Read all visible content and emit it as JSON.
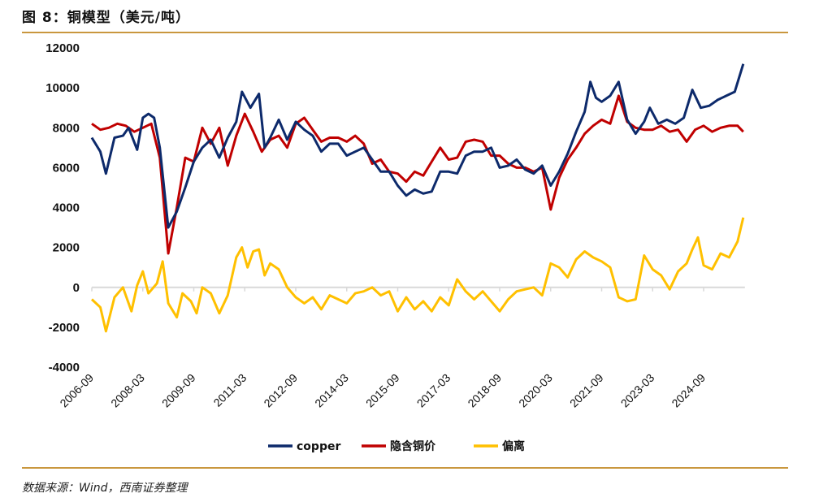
{
  "header": {
    "title": "图 8：铜模型（美元/吨）"
  },
  "footer": {
    "source": "数据来源：Wind，西南证券整理"
  },
  "colors": {
    "rule": "#c9973e",
    "copper": "#0d2a6b",
    "implied": "#c00000",
    "deviation": "#ffc000",
    "zero_line": "#d9d9d9"
  },
  "chart_data": {
    "type": "line",
    "title": "图 8：铜模型（美元/吨）",
    "xlabel": "",
    "ylabel": "",
    "ylim": [
      -4000,
      12000
    ],
    "yticks": [
      12000,
      10000,
      8000,
      6000,
      4000,
      2000,
      0,
      -2000,
      -4000
    ],
    "xlim": [
      "2006-09",
      "2025-11"
    ],
    "xticks": [
      "2006-09",
      "2008-03",
      "2009-09",
      "2011-03",
      "2012-09",
      "2014-03",
      "2015-09",
      "2017-03",
      "2018-09",
      "2020-03",
      "2021-09",
      "2023-03",
      "2024-09"
    ],
    "grid": false,
    "legend": "bottom",
    "series": [
      {
        "name": "copper",
        "color": "#0d2a6b",
        "points": [
          [
            "2006-09",
            7500
          ],
          [
            "2006-12",
            6800
          ],
          [
            "2007-02",
            5700
          ],
          [
            "2007-05",
            7500
          ],
          [
            "2007-08",
            7600
          ],
          [
            "2007-10",
            8000
          ],
          [
            "2008-01",
            6900
          ],
          [
            "2008-03",
            8500
          ],
          [
            "2008-05",
            8700
          ],
          [
            "2008-07",
            8500
          ],
          [
            "2008-09",
            7000
          ],
          [
            "2008-12",
            3000
          ],
          [
            "2009-03",
            3800
          ],
          [
            "2009-06",
            5000
          ],
          [
            "2009-09",
            6300
          ],
          [
            "2009-12",
            7000
          ],
          [
            "2010-03",
            7400
          ],
          [
            "2010-06",
            6500
          ],
          [
            "2010-09",
            7500
          ],
          [
            "2010-12",
            8300
          ],
          [
            "2011-02",
            9800
          ],
          [
            "2011-05",
            9000
          ],
          [
            "2011-08",
            9700
          ],
          [
            "2011-10",
            7000
          ],
          [
            "2011-12",
            7500
          ],
          [
            "2012-03",
            8400
          ],
          [
            "2012-06",
            7400
          ],
          [
            "2012-09",
            8300
          ],
          [
            "2012-12",
            7900
          ],
          [
            "2013-03",
            7600
          ],
          [
            "2013-06",
            6800
          ],
          [
            "2013-09",
            7200
          ],
          [
            "2013-12",
            7200
          ],
          [
            "2014-03",
            6600
          ],
          [
            "2014-06",
            6800
          ],
          [
            "2014-09",
            7000
          ],
          [
            "2014-12",
            6400
          ],
          [
            "2015-03",
            5800
          ],
          [
            "2015-06",
            5800
          ],
          [
            "2015-09",
            5100
          ],
          [
            "2015-12",
            4600
          ],
          [
            "2016-03",
            4900
          ],
          [
            "2016-06",
            4700
          ],
          [
            "2016-09",
            4800
          ],
          [
            "2016-12",
            5800
          ],
          [
            "2017-03",
            5800
          ],
          [
            "2017-06",
            5700
          ],
          [
            "2017-09",
            6600
          ],
          [
            "2017-12",
            6800
          ],
          [
            "2018-03",
            6800
          ],
          [
            "2018-06",
            7000
          ],
          [
            "2018-09",
            6000
          ],
          [
            "2018-12",
            6100
          ],
          [
            "2019-03",
            6400
          ],
          [
            "2019-06",
            5900
          ],
          [
            "2019-09",
            5700
          ],
          [
            "2019-12",
            6100
          ],
          [
            "2020-03",
            5100
          ],
          [
            "2020-06",
            5800
          ],
          [
            "2020-09",
            6700
          ],
          [
            "2020-12",
            7800
          ],
          [
            "2021-03",
            8800
          ],
          [
            "2021-05",
            10300
          ],
          [
            "2021-07",
            9500
          ],
          [
            "2021-09",
            9300
          ],
          [
            "2021-12",
            9600
          ],
          [
            "2022-03",
            10300
          ],
          [
            "2022-06",
            8400
          ],
          [
            "2022-09",
            7700
          ],
          [
            "2022-12",
            8300
          ],
          [
            "2023-02",
            9000
          ],
          [
            "2023-05",
            8200
          ],
          [
            "2023-08",
            8400
          ],
          [
            "2023-11",
            8200
          ],
          [
            "2024-02",
            8500
          ],
          [
            "2024-05",
            9900
          ],
          [
            "2024-08",
            9000
          ],
          [
            "2024-11",
            9100
          ],
          [
            "2025-02",
            9400
          ],
          [
            "2025-05",
            9600
          ],
          [
            "2025-08",
            9800
          ],
          [
            "2025-11",
            11200
          ]
        ]
      },
      {
        "name": "隐含铜价",
        "color": "#c00000",
        "points": [
          [
            "2006-09",
            8200
          ],
          [
            "2006-12",
            7900
          ],
          [
            "2007-03",
            8000
          ],
          [
            "2007-06",
            8200
          ],
          [
            "2007-09",
            8100
          ],
          [
            "2007-12",
            7800
          ],
          [
            "2008-03",
            8000
          ],
          [
            "2008-06",
            8200
          ],
          [
            "2008-09",
            6500
          ],
          [
            "2008-12",
            1700
          ],
          [
            "2009-03",
            4000
          ],
          [
            "2009-06",
            6500
          ],
          [
            "2009-09",
            6300
          ],
          [
            "2009-12",
            8000
          ],
          [
            "2010-03",
            7200
          ],
          [
            "2010-06",
            8000
          ],
          [
            "2010-09",
            6100
          ],
          [
            "2010-12",
            7600
          ],
          [
            "2011-03",
            8700
          ],
          [
            "2011-06",
            7800
          ],
          [
            "2011-09",
            6800
          ],
          [
            "2011-12",
            7400
          ],
          [
            "2012-03",
            7600
          ],
          [
            "2012-06",
            7000
          ],
          [
            "2012-09",
            8200
          ],
          [
            "2012-12",
            8500
          ],
          [
            "2013-03",
            7900
          ],
          [
            "2013-06",
            7300
          ],
          [
            "2013-09",
            7500
          ],
          [
            "2013-12",
            7500
          ],
          [
            "2014-03",
            7300
          ],
          [
            "2014-06",
            7600
          ],
          [
            "2014-09",
            7200
          ],
          [
            "2014-12",
            6200
          ],
          [
            "2015-03",
            6400
          ],
          [
            "2015-06",
            5800
          ],
          [
            "2015-09",
            5700
          ],
          [
            "2015-12",
            5300
          ],
          [
            "2016-03",
            5800
          ],
          [
            "2016-06",
            5600
          ],
          [
            "2016-09",
            6300
          ],
          [
            "2016-12",
            7000
          ],
          [
            "2017-03",
            6400
          ],
          [
            "2017-06",
            6500
          ],
          [
            "2017-09",
            7300
          ],
          [
            "2017-12",
            7400
          ],
          [
            "2018-03",
            7300
          ],
          [
            "2018-06",
            6600
          ],
          [
            "2018-09",
            6600
          ],
          [
            "2018-12",
            6200
          ],
          [
            "2019-03",
            6000
          ],
          [
            "2019-06",
            6000
          ],
          [
            "2019-09",
            5800
          ],
          [
            "2019-12",
            6000
          ],
          [
            "2020-03",
            3900
          ],
          [
            "2020-06",
            5500
          ],
          [
            "2020-09",
            6400
          ],
          [
            "2020-12",
            7000
          ],
          [
            "2021-03",
            7700
          ],
          [
            "2021-06",
            8100
          ],
          [
            "2021-09",
            8400
          ],
          [
            "2021-12",
            8200
          ],
          [
            "2022-03",
            9600
          ],
          [
            "2022-06",
            8300
          ],
          [
            "2022-09",
            8000
          ],
          [
            "2022-12",
            7900
          ],
          [
            "2023-03",
            7900
          ],
          [
            "2023-06",
            8100
          ],
          [
            "2023-09",
            7800
          ],
          [
            "2023-12",
            7900
          ],
          [
            "2024-03",
            7300
          ],
          [
            "2024-06",
            7900
          ],
          [
            "2024-09",
            8100
          ],
          [
            "2024-12",
            7800
          ],
          [
            "2025-03",
            8000
          ],
          [
            "2025-06",
            8100
          ],
          [
            "2025-09",
            8100
          ],
          [
            "2025-11",
            7800
          ]
        ]
      },
      {
        "name": "偏离",
        "color": "#ffc000",
        "points": [
          [
            "2006-09",
            -600
          ],
          [
            "2006-12",
            -1000
          ],
          [
            "2007-02",
            -2200
          ],
          [
            "2007-05",
            -500
          ],
          [
            "2007-08",
            0
          ],
          [
            "2007-11",
            -1200
          ],
          [
            "2008-01",
            100
          ],
          [
            "2008-03",
            800
          ],
          [
            "2008-05",
            -300
          ],
          [
            "2008-08",
            200
          ],
          [
            "2008-10",
            1300
          ],
          [
            "2008-12",
            -800
          ],
          [
            "2009-03",
            -1500
          ],
          [
            "2009-05",
            -300
          ],
          [
            "2009-08",
            -700
          ],
          [
            "2009-10",
            -1300
          ],
          [
            "2009-12",
            0
          ],
          [
            "2010-03",
            -300
          ],
          [
            "2010-06",
            -1300
          ],
          [
            "2010-09",
            -400
          ],
          [
            "2010-12",
            1500
          ],
          [
            "2011-02",
            2000
          ],
          [
            "2011-04",
            1000
          ],
          [
            "2011-06",
            1800
          ],
          [
            "2011-08",
            1900
          ],
          [
            "2011-10",
            600
          ],
          [
            "2011-12",
            1200
          ],
          [
            "2012-03",
            900
          ],
          [
            "2012-06",
            0
          ],
          [
            "2012-09",
            -500
          ],
          [
            "2012-12",
            -800
          ],
          [
            "2013-03",
            -500
          ],
          [
            "2013-06",
            -1100
          ],
          [
            "2013-09",
            -400
          ],
          [
            "2013-12",
            -600
          ],
          [
            "2014-03",
            -800
          ],
          [
            "2014-06",
            -300
          ],
          [
            "2014-09",
            -200
          ],
          [
            "2014-12",
            0
          ],
          [
            "2015-03",
            -400
          ],
          [
            "2015-06",
            -200
          ],
          [
            "2015-09",
            -1200
          ],
          [
            "2015-12",
            -500
          ],
          [
            "2016-03",
            -1100
          ],
          [
            "2016-06",
            -700
          ],
          [
            "2016-09",
            -1200
          ],
          [
            "2016-12",
            -500
          ],
          [
            "2017-03",
            -900
          ],
          [
            "2017-06",
            400
          ],
          [
            "2017-09",
            -200
          ],
          [
            "2017-12",
            -600
          ],
          [
            "2018-03",
            -200
          ],
          [
            "2018-06",
            -700
          ],
          [
            "2018-09",
            -1200
          ],
          [
            "2018-12",
            -600
          ],
          [
            "2019-03",
            -200
          ],
          [
            "2019-06",
            -100
          ],
          [
            "2019-09",
            0
          ],
          [
            "2019-12",
            -400
          ],
          [
            "2020-03",
            1200
          ],
          [
            "2020-06",
            1000
          ],
          [
            "2020-09",
            500
          ],
          [
            "2020-12",
            1400
          ],
          [
            "2021-03",
            1800
          ],
          [
            "2021-06",
            1500
          ],
          [
            "2021-09",
            1300
          ],
          [
            "2021-12",
            1000
          ],
          [
            "2022-03",
            -500
          ],
          [
            "2022-06",
            -700
          ],
          [
            "2022-09",
            -600
          ],
          [
            "2022-12",
            1600
          ],
          [
            "2023-03",
            900
          ],
          [
            "2023-06",
            600
          ],
          [
            "2023-09",
            -100
          ],
          [
            "2023-12",
            800
          ],
          [
            "2024-03",
            1200
          ],
          [
            "2024-05",
            1900
          ],
          [
            "2024-07",
            2500
          ],
          [
            "2024-09",
            1100
          ],
          [
            "2024-12",
            900
          ],
          [
            "2025-03",
            1700
          ],
          [
            "2025-06",
            1500
          ],
          [
            "2025-09",
            2300
          ],
          [
            "2025-11",
            3500
          ]
        ]
      }
    ]
  }
}
